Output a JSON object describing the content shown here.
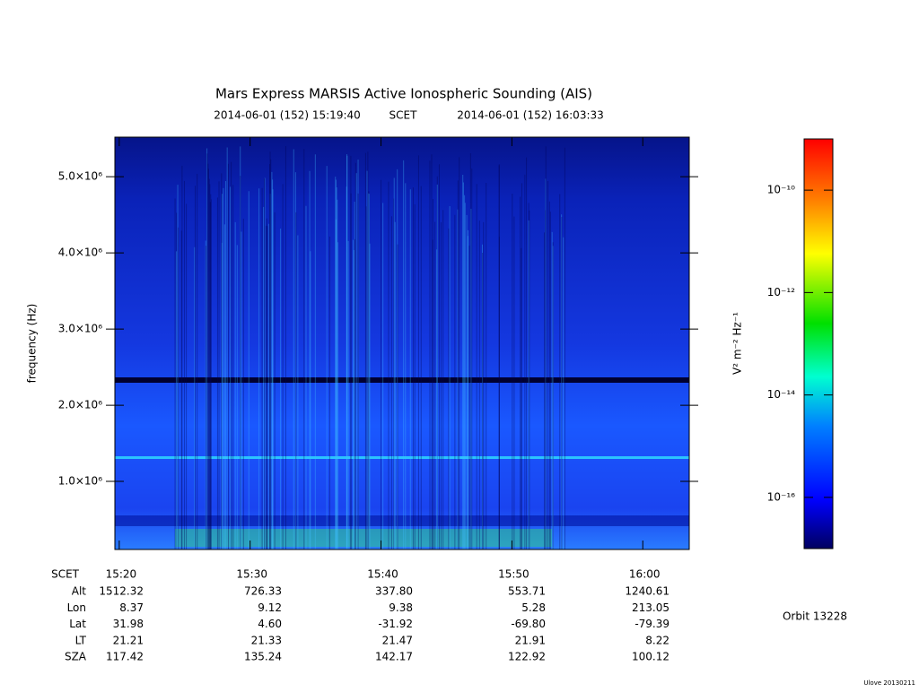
{
  "chart_data": {
    "type": "spectrogram",
    "title": "Mars Express MARSIS Active Ionospheric Sounding (AIS)",
    "start_time": "2014-06-01 (152) 15:19:40",
    "time_system": "SCET",
    "end_time": "2014-06-01 (152) 16:03:33",
    "y_label": "frequency (Hz)",
    "xlim": [
      "15:19:40",
      "16:03:33"
    ],
    "xticks": [
      "15:20",
      "15:30",
      "15:40",
      "15:50",
      "16:00"
    ],
    "ylim": [
      106000,
      5520000
    ],
    "yticks": [
      {
        "value": 1000000,
        "label": "1.0×10⁶"
      },
      {
        "value": 2000000,
        "label": "2.0×10⁶"
      },
      {
        "value": 3000000,
        "label": "3.0×10⁶"
      },
      {
        "value": 4000000,
        "label": "4.0×10⁶"
      },
      {
        "value": 5000000,
        "label": "5.0×10⁶"
      }
    ],
    "colorbar": {
      "label": "V² m⁻² Hz⁻¹",
      "log_scale": true,
      "clim": [
        1e-17,
        1e-09
      ],
      "ticks": [
        {
          "value": 1e-10,
          "label": "10⁻¹⁰"
        },
        {
          "value": 1e-12,
          "label": "10⁻¹²"
        },
        {
          "value": 1e-14,
          "label": "10⁻¹⁴"
        },
        {
          "value": 1e-16,
          "label": "10⁻¹⁶"
        }
      ]
    },
    "ephemeris": {
      "time_label": "SCET",
      "rows": [
        {
          "label": "Alt",
          "values": [
            "1512.32",
            "726.33",
            "337.80",
            "553.71",
            "1240.61"
          ]
        },
        {
          "label": "Lon",
          "values": [
            "8.37",
            "9.12",
            "9.38",
            "5.28",
            "213.05"
          ]
        },
        {
          "label": "Lat",
          "values": [
            "31.98",
            "4.60",
            "-31.92",
            "-69.80",
            "-79.39"
          ]
        },
        {
          "label": "LT",
          "values": [
            "21.21",
            "21.33",
            "21.47",
            "21.91",
            "8.22"
          ]
        },
        {
          "label": "SZA",
          "values": [
            "117.42",
            "135.24",
            "142.17",
            "122.92",
            "100.12"
          ]
        }
      ]
    },
    "orbit": "Orbit 13228",
    "footer": "Ulove 20130211"
  }
}
